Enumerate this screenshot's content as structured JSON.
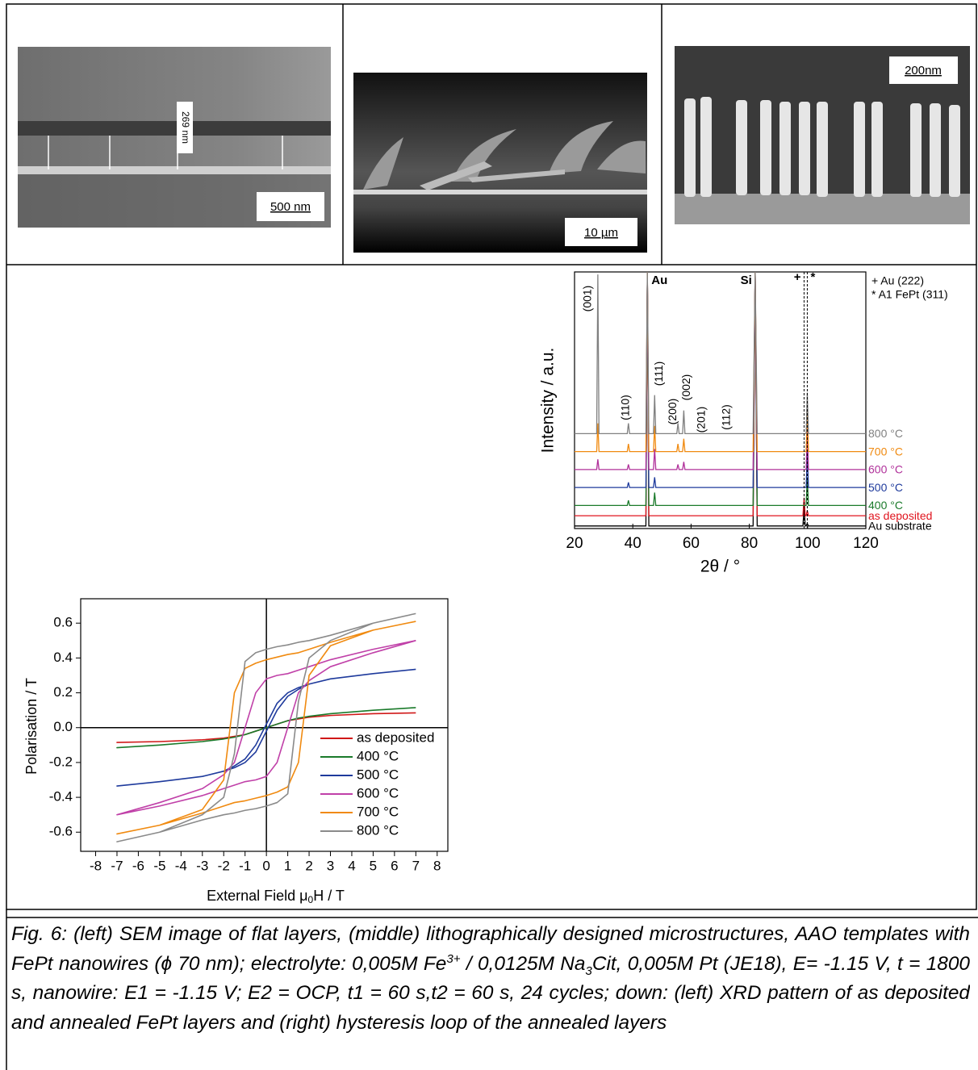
{
  "images": [
    {
      "scale_bar": "500 nm",
      "label": "269 nm"
    },
    {
      "scale_bar": "10 µm"
    },
    {
      "scale_bar": "200nm"
    }
  ],
  "chart_data": [
    {
      "type": "line",
      "xlabel": "2θ / °",
      "ylabel": "Intensity / a.u.",
      "xlim": [
        20,
        120
      ],
      "xticks": [
        20,
        40,
        60,
        80,
        100,
        120
      ],
      "ylim": [
        0,
        100
      ],
      "x": [
        20,
        27.6,
        28,
        28.4,
        38.1,
        38.5,
        38.9,
        44.5,
        45,
        45.5,
        47.1,
        47.5,
        47.9,
        55.1,
        55.5,
        55.9,
        57.1,
        57.5,
        57.9,
        81.3,
        82,
        82.7,
        98.4,
        98.8,
        99.2,
        99.5,
        99.9,
        100.3,
        120
      ],
      "series": [
        {
          "name": "Au substrate",
          "color": "#000000",
          "values": [
            1,
            1,
            1,
            1,
            1,
            1,
            1,
            1,
            100,
            1,
            1,
            1,
            1,
            1,
            1,
            1,
            1,
            1,
            1,
            1,
            100,
            1,
            1,
            8,
            1,
            1,
            2,
            1,
            1
          ]
        },
        {
          "name": "as deposited",
          "color": "#e0141e",
          "values": [
            5,
            5,
            5,
            5,
            5,
            5,
            5,
            5,
            100,
            5,
            5,
            5,
            5,
            5,
            5,
            5,
            5,
            5,
            5,
            5,
            100,
            5,
            5,
            12,
            5,
            5,
            7,
            5,
            5
          ]
        },
        {
          "name": "400 °C",
          "color": "#1a7a2a",
          "values": [
            9,
            9,
            9,
            9,
            9,
            11,
            9,
            9,
            100,
            9,
            9,
            14,
            9,
            9,
            9,
            9,
            9,
            9,
            9,
            9,
            100,
            9,
            9,
            9,
            9,
            9,
            20,
            9,
            9
          ]
        },
        {
          "name": "500 °C",
          "color": "#1e3a9c",
          "values": [
            16,
            16,
            16,
            16,
            16,
            18,
            16,
            16,
            100,
            16,
            16,
            20,
            16,
            16,
            16,
            16,
            16,
            16,
            16,
            16,
            100,
            16,
            16,
            16,
            16,
            16,
            30,
            16,
            16
          ]
        },
        {
          "name": "600 °C",
          "color": "#b0309a",
          "values": [
            23,
            23,
            27,
            23,
            23,
            25,
            23,
            23,
            100,
            23,
            23,
            31,
            23,
            23,
            25,
            23,
            23,
            26,
            23,
            23,
            100,
            23,
            23,
            23,
            23,
            23,
            40,
            23,
            23
          ]
        },
        {
          "name": "700 °C",
          "color": "#f08a10",
          "values": [
            30,
            30,
            41,
            30,
            30,
            33,
            30,
            30,
            100,
            30,
            30,
            40,
            30,
            30,
            33,
            30,
            30,
            35,
            30,
            30,
            100,
            30,
            30,
            30,
            30,
            30,
            48,
            30,
            30
          ]
        },
        {
          "name": "800 °C",
          "color": "#808080",
          "values": [
            37,
            37,
            99,
            37,
            37,
            41,
            37,
            37,
            100,
            37,
            37,
            52,
            37,
            37,
            41,
            37,
            37,
            46,
            37,
            37,
            100,
            37,
            37,
            37,
            37,
            37,
            53,
            37,
            37
          ]
        }
      ],
      "annotations": [
        {
          "text": "(001)",
          "x": 28
        },
        {
          "text": "(110)",
          "x": 38.5
        },
        {
          "text": "(111)",
          "x": 47.5
        },
        {
          "text": "(200)",
          "x": 55.5
        },
        {
          "text": "(002)",
          "x": 57.5
        },
        {
          "text": "(201)",
          "x": 64
        },
        {
          "text": "(112)",
          "x": 72
        },
        {
          "text": "Au",
          "x": 45
        },
        {
          "text": "Si",
          "x": 82
        },
        {
          "text": "+",
          "x": 98.8
        },
        {
          "text": "*",
          "x": 99.9
        }
      ],
      "legend_text": [
        "+ Au (222)",
        "* A1 FePt (311)"
      ]
    },
    {
      "type": "line",
      "xlabel": [
        "External Field μ",
        "0",
        "H / T"
      ],
      "ylabel": "Polarisation / T",
      "xlim": [
        -8.7,
        8.5
      ],
      "xticks": [
        -8,
        -7,
        -6,
        -5,
        -4,
        -3,
        -2,
        -1,
        0,
        1,
        2,
        3,
        4,
        5,
        6,
        7,
        8
      ],
      "ylim": [
        -0.71,
        0.74
      ],
      "yticks": [
        -0.6,
        -0.4,
        -0.2,
        {
          "value": 0,
          "label": "0.0"
        },
        0.2,
        0.4,
        0.6
      ],
      "legend": "lower right",
      "x": [
        7,
        5,
        3,
        2,
        1.5,
        1,
        0.5,
        0,
        -0.5,
        -1,
        -1.5,
        -2,
        -3,
        -5,
        -7,
        -5,
        -3,
        -2,
        -1.5,
        -1,
        -0.5,
        0,
        0.5,
        1,
        1.5,
        2,
        3,
        5,
        7
      ],
      "series": [
        {
          "name": "as deposited",
          "color": "#d01818",
          "values": [
            0.085,
            0.08,
            0.07,
            0.06,
            0.05,
            0.04,
            0.02,
            0,
            -0.02,
            -0.04,
            -0.05,
            -0.06,
            -0.07,
            -0.08,
            -0.085,
            -0.08,
            -0.07,
            -0.06,
            -0.05,
            -0.04,
            -0.02,
            0,
            0.02,
            0.04,
            0.05,
            0.06,
            0.07,
            0.08,
            0.085
          ]
        },
        {
          "name": "400 °C",
          "color": "#1a7a2a",
          "values": [
            0.115,
            0.1,
            0.08,
            0.065,
            0.055,
            0.04,
            0.02,
            0,
            -0.02,
            -0.04,
            -0.055,
            -0.065,
            -0.08,
            -0.1,
            -0.115,
            -0.1,
            -0.08,
            -0.065,
            -0.055,
            -0.04,
            -0.02,
            0,
            0.02,
            0.04,
            0.055,
            0.065,
            0.08,
            0.1,
            0.115
          ]
        },
        {
          "name": "500 °C",
          "color": "#1e3a9c",
          "values": [
            0.335,
            0.31,
            0.28,
            0.25,
            0.23,
            0.2,
            0.14,
            0.02,
            -0.1,
            -0.18,
            -0.22,
            -0.25,
            -0.28,
            -0.31,
            -0.335,
            -0.31,
            -0.28,
            -0.25,
            -0.23,
            -0.2,
            -0.14,
            -0.02,
            0.1,
            0.18,
            0.22,
            0.25,
            0.28,
            0.31,
            0.335
          ]
        },
        {
          "name": "600 °C",
          "color": "#c040a8",
          "values": [
            0.5,
            0.45,
            0.39,
            0.35,
            0.33,
            0.31,
            0.3,
            0.28,
            0.2,
            0,
            -0.2,
            -0.27,
            -0.35,
            -0.43,
            -0.5,
            -0.45,
            -0.39,
            -0.35,
            -0.33,
            -0.31,
            -0.3,
            -0.28,
            -0.2,
            0,
            0.2,
            0.27,
            0.35,
            0.43,
            0.5
          ]
        },
        {
          "name": "700 °C",
          "color": "#f08a10",
          "values": [
            0.61,
            0.56,
            0.49,
            0.45,
            0.43,
            0.42,
            0.405,
            0.39,
            0.37,
            0.34,
            0.2,
            -0.3,
            -0.47,
            -0.56,
            -0.61,
            -0.56,
            -0.49,
            -0.45,
            -0.43,
            -0.42,
            -0.405,
            -0.39,
            -0.37,
            -0.34,
            -0.2,
            0.3,
            0.47,
            0.56,
            0.61
          ]
        },
        {
          "name": "800 °C",
          "color": "#8a8a8a",
          "values": [
            0.655,
            0.6,
            0.53,
            0.5,
            0.49,
            0.475,
            0.465,
            0.45,
            0.43,
            0.38,
            -0.15,
            -0.4,
            -0.5,
            -0.6,
            -0.655,
            -0.6,
            -0.53,
            -0.5,
            -0.49,
            -0.475,
            -0.465,
            -0.45,
            -0.43,
            -0.38,
            0.15,
            0.4,
            0.5,
            0.6,
            0.655
          ]
        }
      ]
    }
  ],
  "caption": [
    {
      "text": "Fig. 6: (left) SEM image of flat layers, (middle) lithographically designed microstructures, AAO templates with FePt nanowires (ϕ 70 nm); electrolyte:  0,005M Fe"
    },
    {
      "text": "3+",
      "style": "sup"
    },
    {
      "text": " / 0,0125M Na"
    },
    {
      "text": "3",
      "style": "sub"
    },
    {
      "text": "Cit, 0,005M Pt (JE18), E= -1.15 V, t = 1800 s, nanowire:  E1 = -1.15 V; E2 = OCP, t1 = 60 s,t2 = 60 s, 24 cycles; down: (left) XRD pattern of as deposited and annealed FePt layers and (right) hysteresis loop of the annealed layers"
    }
  ]
}
